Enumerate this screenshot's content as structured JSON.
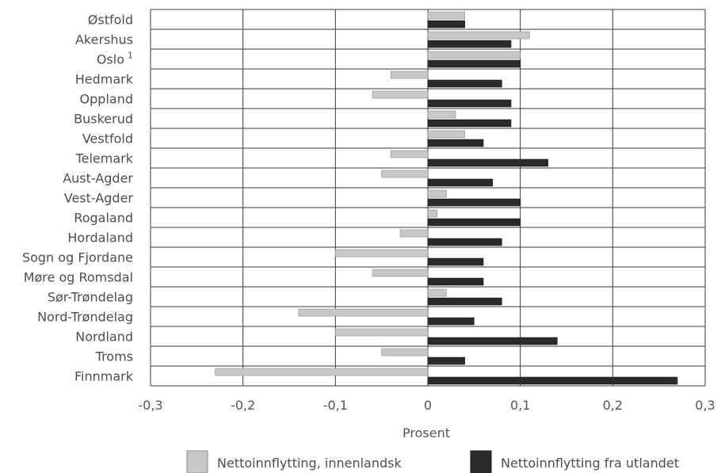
{
  "chart_data": {
    "type": "bar",
    "orientation": "horizontal",
    "categories": [
      "Østfold",
      "Akershus",
      "Oslo",
      "Hedmark",
      "Oppland",
      "Buskerud",
      "Vestfold",
      "Telemark",
      "Aust-Agder",
      "Vest-Agder",
      "Rogaland",
      "Hordaland",
      "Sogn og Fjordane",
      "Møre og Romsdal",
      "Sør-Trøndelag",
      "Nord-Trøndelag",
      "Nordland",
      "Troms",
      "Finnmark"
    ],
    "category_superscripts": {
      "Oslo": "1"
    },
    "series": [
      {
        "name": "Nettoinnflytting, innenlandsk",
        "color": "#c8c8c8",
        "values": [
          0.04,
          0.11,
          0.1,
          -0.04,
          -0.06,
          0.03,
          0.04,
          -0.04,
          -0.05,
          0.02,
          0.01,
          -0.03,
          -0.1,
          -0.06,
          0.02,
          -0.14,
          -0.1,
          -0.05,
          -0.23
        ]
      },
      {
        "name": "Nettoinnflytting fra utlandet",
        "color": "#2a2a2a",
        "values": [
          0.04,
          0.09,
          0.1,
          0.08,
          0.09,
          0.09,
          0.06,
          0.13,
          0.07,
          0.1,
          0.1,
          0.08,
          0.06,
          0.06,
          0.08,
          0.05,
          0.14,
          0.04,
          0.27
        ]
      }
    ],
    "xlim": [
      -0.3,
      0.3
    ],
    "xticks": [
      -0.3,
      -0.2,
      -0.1,
      0,
      0.1,
      0.2,
      0.3
    ],
    "xtick_labels": [
      "-0,3",
      "-0,2",
      "-0,1",
      "0",
      "0,1",
      "0,2",
      "0,3"
    ],
    "xlabel": "Prosent",
    "title": "",
    "grid": true,
    "legend_position": "bottom"
  }
}
